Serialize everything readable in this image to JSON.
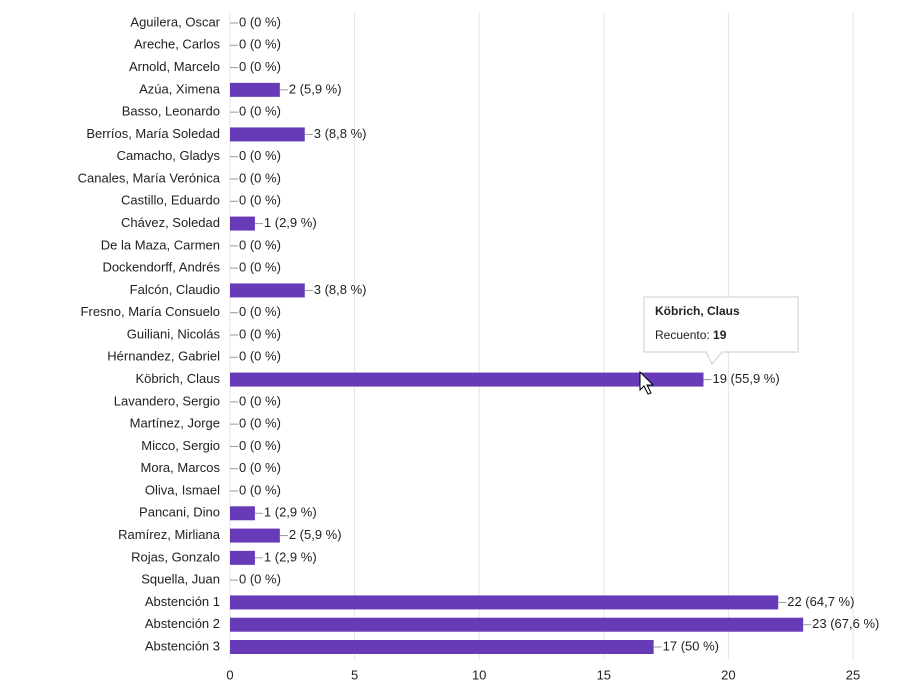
{
  "chart_data": {
    "type": "bar",
    "orientation": "horizontal",
    "color": "#673ab7",
    "categories": [
      "Aguilera, Oscar",
      "Areche, Carlos",
      "Arnold, Marcelo",
      "Azúa, Ximena",
      "Basso, Leonardo",
      "Berríos, María Soledad",
      "Camacho, Gladys",
      "Canales, María Verónica",
      "Castillo, Eduardo",
      "Chávez, Soledad",
      "De la Maza, Carmen",
      "Dockendorff, Andrés",
      "Falcón, Claudio",
      "Fresno, María Consuelo",
      "Guiliani, Nicolás",
      "Hérnandez, Gabriel",
      "Köbrich, Claus",
      "Lavandero, Sergio",
      "Martínez, Jorge",
      "Micco, Sergio",
      "Mora, Marcos",
      "Oliva, Ismael",
      "Pancani, Dino",
      "Ramírez, Mirliana",
      "Rojas, Gonzalo",
      "Squella, Juan",
      "Abstención 1",
      "Abstención 2",
      "Abstención 3"
    ],
    "values": [
      0,
      0,
      0,
      2,
      0,
      3,
      0,
      0,
      0,
      1,
      0,
      0,
      3,
      0,
      0,
      0,
      19,
      0,
      0,
      0,
      0,
      0,
      1,
      2,
      1,
      0,
      22,
      23,
      17
    ],
    "value_labels": [
      "0 (0 %)",
      "0 (0 %)",
      "0 (0 %)",
      "2 (5,9 %)",
      "0 (0 %)",
      "3 (8,8 %)",
      "0 (0 %)",
      "0 (0 %)",
      "0 (0 %)",
      "1 (2,9 %)",
      "0 (0 %)",
      "0 (0 %)",
      "3 (8,8 %)",
      "0 (0 %)",
      "0 (0 %)",
      "0 (0 %)",
      "19 (55,9 %)",
      "0 (0 %)",
      "0 (0 %)",
      "0 (0 %)",
      "0 (0 %)",
      "0 (0 %)",
      "1 (2,9 %)",
      "2 (5,9 %)",
      "1 (2,9 %)",
      "0 (0 %)",
      "22 (64,7 %)",
      "23 (67,6 %)",
      "17 (50 %)"
    ],
    "xlim": [
      0,
      25
    ],
    "xticks": [
      0,
      5,
      10,
      15,
      20,
      25
    ],
    "grid": true,
    "tooltip_label": "Recuento:"
  }
}
